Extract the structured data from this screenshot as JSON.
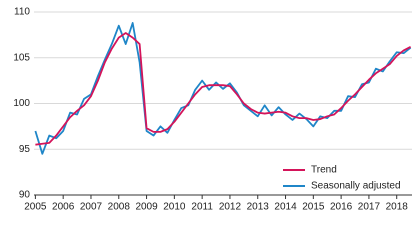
{
  "chart_data": {
    "type": "line",
    "x": [
      2005,
      2005.25,
      2005.5,
      2005.75,
      2006,
      2006.25,
      2006.5,
      2006.75,
      2007,
      2007.25,
      2007.5,
      2007.75,
      2008,
      2008.25,
      2008.5,
      2008.75,
      2009,
      2009.25,
      2009.5,
      2009.75,
      2010,
      2010.25,
      2010.5,
      2010.75,
      2011,
      2011.25,
      2011.5,
      2011.75,
      2012,
      2012.25,
      2012.5,
      2012.75,
      2013,
      2013.25,
      2013.5,
      2013.75,
      2014,
      2014.25,
      2014.5,
      2014.75,
      2015,
      2015.25,
      2015.5,
      2015.75,
      2016,
      2016.25,
      2016.5,
      2016.75,
      2017,
      2017.25,
      2017.5,
      2017.75,
      2018,
      2018.25,
      2018.5
    ],
    "series": [
      {
        "name": "Trend",
        "color": "#d4145a",
        "values": [
          95.5,
          95.6,
          95.7,
          96.5,
          97.5,
          98.5,
          99.2,
          99.8,
          100.8,
          102.5,
          104.5,
          106,
          107.2,
          107.7,
          107.2,
          106.5,
          97.3,
          96.9,
          96.9,
          97.2,
          98,
          99,
          100,
          101,
          101.8,
          102,
          102,
          102,
          101.9,
          101,
          100,
          99.4,
          99,
          98.9,
          99,
          99.1,
          99,
          98.6,
          98.4,
          98.4,
          98.2,
          98.3,
          98.6,
          98.8,
          99.5,
          100.3,
          101,
          101.8,
          102.6,
          103.3,
          103.8,
          104.3,
          105.2,
          105.8,
          106.2
        ]
      },
      {
        "name": "Seasonally adjusted",
        "color": "#1f86c8",
        "values": [
          97,
          94.5,
          96.5,
          96.2,
          97,
          99,
          98.8,
          100.5,
          101,
          103,
          104.8,
          106.5,
          108.5,
          106.5,
          108.8,
          104.5,
          97,
          96.5,
          97.5,
          96.8,
          98.2,
          99.5,
          99.8,
          101.5,
          102.5,
          101.5,
          102.3,
          101.6,
          102.2,
          101.2,
          99.8,
          99.2,
          98.6,
          99.8,
          98.7,
          99.6,
          98.8,
          98.2,
          98.9,
          98.3,
          97.5,
          98.6,
          98.4,
          99.2,
          99.2,
          100.8,
          100.7,
          102.1,
          102.3,
          103.8,
          103.5,
          104.6,
          105.6,
          105.5,
          106.1
        ]
      }
    ],
    "xlim": [
      2004.95,
      2018.55
    ],
    "xticks": [
      2005,
      2006,
      2007,
      2008,
      2009,
      2010,
      2011,
      2012,
      2013,
      2014,
      2015,
      2016,
      2017,
      2018
    ],
    "ylim": [
      90,
      110
    ],
    "yticks": [
      90,
      95,
      100,
      105,
      110
    ],
    "grid": true,
    "legend": "lower right"
  }
}
